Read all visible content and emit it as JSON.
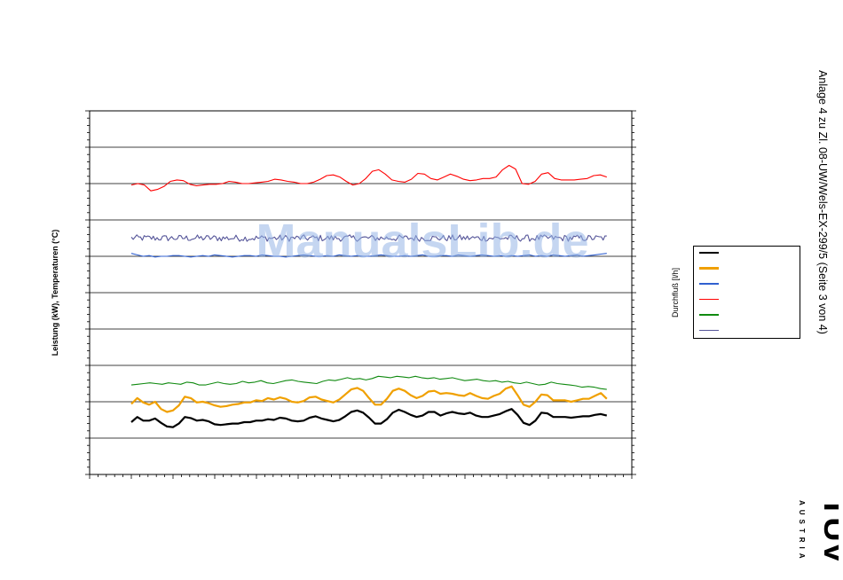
{
  "side_text": "Anlage 4 zu Zl. 08-UW/Wels-EX-299/5 (Seite 3 von 4)",
  "watermark": "ManualsLib.de",
  "logo": {
    "name": "TÜV",
    "subtitle": "AUSTRIA",
    "color": "#000000"
  },
  "chart_data": {
    "type": "line",
    "ylabel": "Leistung (kW), Temperaturen (°C)",
    "y2label": "Durchfluß [l/h]",
    "ylim": [
      0,
      10
    ],
    "y_major_ticks": 10,
    "y_minor_per_major": 5,
    "xlim": [
      0,
      13
    ],
    "x_major_ticks": 13,
    "x_minor_per_major": 5,
    "grid": true,
    "legend_position": "right",
    "series": [
      {
        "color": "#000000",
        "width": 2.2,
        "values": [
          1.44,
          1.58,
          1.48,
          1.48,
          1.54,
          1.42,
          1.32,
          1.3,
          1.4,
          1.58,
          1.55,
          1.48,
          1.5,
          1.46,
          1.38,
          1.36,
          1.38,
          1.4,
          1.4,
          1.44,
          1.44,
          1.48,
          1.48,
          1.52,
          1.5,
          1.56,
          1.54,
          1.48,
          1.46,
          1.48,
          1.56,
          1.6,
          1.54,
          1.5,
          1.46,
          1.5,
          1.6,
          1.72,
          1.76,
          1.7,
          1.56,
          1.4,
          1.4,
          1.52,
          1.7,
          1.78,
          1.72,
          1.64,
          1.58,
          1.62,
          1.72,
          1.72,
          1.62,
          1.68,
          1.72,
          1.68,
          1.66,
          1.7,
          1.62,
          1.58,
          1.58,
          1.62,
          1.66,
          1.74,
          1.8,
          1.64,
          1.42,
          1.36,
          1.48,
          1.7,
          1.68,
          1.58,
          1.58,
          1.58,
          1.56,
          1.58,
          1.6,
          1.6,
          1.64,
          1.66,
          1.62
        ]
      },
      {
        "color": "#f0a000",
        "width": 2.2,
        "values": [
          1.94,
          2.1,
          1.98,
          1.92,
          2.0,
          1.8,
          1.72,
          1.76,
          1.9,
          2.14,
          2.1,
          1.98,
          2.0,
          1.96,
          1.9,
          1.86,
          1.88,
          1.92,
          1.94,
          1.98,
          1.98,
          2.04,
          2.02,
          2.1,
          2.06,
          2.12,
          2.08,
          2.0,
          1.98,
          2.02,
          2.12,
          2.14,
          2.06,
          2.02,
          1.98,
          2.06,
          2.2,
          2.34,
          2.38,
          2.3,
          2.1,
          1.92,
          1.92,
          2.08,
          2.3,
          2.36,
          2.3,
          2.18,
          2.1,
          2.16,
          2.28,
          2.3,
          2.22,
          2.24,
          2.22,
          2.18,
          2.16,
          2.24,
          2.16,
          2.1,
          2.08,
          2.16,
          2.22,
          2.36,
          2.42,
          2.18,
          1.92,
          1.86,
          2.0,
          2.2,
          2.18,
          2.04,
          2.04,
          2.04,
          2.0,
          2.04,
          2.08,
          2.08,
          2.16,
          2.24,
          2.08
        ]
      },
      {
        "color": "#3060d0",
        "width": 1.1,
        "values": [
          6.08,
          6.04,
          6.0,
          6.02,
          5.98,
          6.0,
          6.0,
          6.02,
          6.02,
          6.0,
          5.98,
          6.0,
          6.02,
          6.0,
          6.04,
          6.02,
          6.0,
          5.98,
          6.0,
          6.02,
          6.02,
          6.0,
          6.04,
          6.02,
          6.0,
          6.0,
          5.98,
          6.0,
          6.02,
          6.04,
          6.02,
          6.0,
          6.0,
          6.02,
          6.0,
          6.04,
          6.02,
          6.0,
          6.02,
          6.0,
          6.0,
          6.02,
          6.04,
          6.02,
          6.0,
          6.0,
          6.02,
          6.0,
          6.02,
          6.04,
          6.0,
          6.0,
          6.02,
          6.02,
          6.0,
          6.04,
          6.02,
          6.0,
          6.02,
          6.04,
          6.02,
          6.0,
          6.02,
          6.0,
          6.02,
          6.0,
          6.02,
          6.04,
          6.0,
          6.02,
          6.0,
          6.04,
          6.02,
          6.0,
          6.02,
          6.04,
          6.0,
          6.02,
          6.04,
          6.06,
          6.08
        ]
      },
      {
        "color": "#ff0000",
        "width": 1.1,
        "values": [
          7.96,
          8.0,
          7.96,
          7.8,
          7.84,
          7.92,
          8.06,
          8.1,
          8.08,
          7.98,
          7.94,
          7.96,
          7.98,
          7.98,
          8.0,
          8.06,
          8.04,
          8.0,
          8.0,
          8.02,
          8.04,
          8.06,
          8.12,
          8.1,
          8.06,
          8.04,
          8.0,
          8.0,
          8.04,
          8.12,
          8.22,
          8.24,
          8.18,
          8.06,
          7.96,
          8.0,
          8.14,
          8.34,
          8.38,
          8.26,
          8.1,
          8.06,
          8.04,
          8.12,
          8.28,
          8.26,
          8.14,
          8.1,
          8.18,
          8.26,
          8.2,
          8.12,
          8.08,
          8.1,
          8.14,
          8.14,
          8.18,
          8.38,
          8.5,
          8.4,
          8.0,
          7.98,
          8.06,
          8.26,
          8.3,
          8.14,
          8.1,
          8.1,
          8.1,
          8.12,
          8.14,
          8.22,
          8.24,
          8.18
        ]
      },
      {
        "color": "#108a10",
        "width": 1.1,
        "values": [
          2.46,
          2.48,
          2.5,
          2.52,
          2.5,
          2.48,
          2.52,
          2.5,
          2.48,
          2.54,
          2.52,
          2.46,
          2.46,
          2.5,
          2.54,
          2.5,
          2.48,
          2.5,
          2.56,
          2.52,
          2.54,
          2.58,
          2.52,
          2.5,
          2.54,
          2.58,
          2.6,
          2.56,
          2.54,
          2.52,
          2.5,
          2.56,
          2.6,
          2.58,
          2.62,
          2.66,
          2.62,
          2.64,
          2.6,
          2.64,
          2.7,
          2.68,
          2.66,
          2.7,
          2.68,
          2.66,
          2.7,
          2.66,
          2.64,
          2.66,
          2.62,
          2.64,
          2.66,
          2.62,
          2.58,
          2.6,
          2.62,
          2.58,
          2.56,
          2.58,
          2.54,
          2.56,
          2.52,
          2.5,
          2.54,
          2.5,
          2.46,
          2.48,
          2.54,
          2.5,
          2.48,
          2.46,
          2.44,
          2.4,
          2.42,
          2.4,
          2.36,
          2.34
        ]
      },
      {
        "color": "#555599",
        "width": 1.1,
        "noise": true,
        "base": 6.5,
        "amp": 0.09
      }
    ]
  }
}
